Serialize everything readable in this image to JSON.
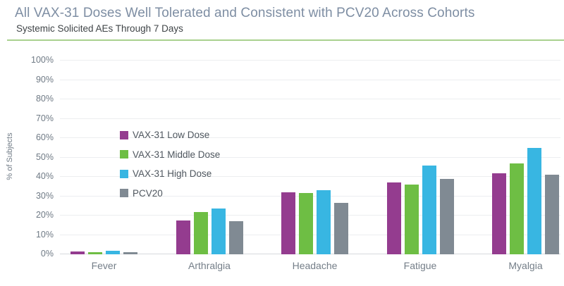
{
  "header": {
    "title": "All VAX-31 Doses Well Tolerated and Consistent with PCV20 Across Cohorts",
    "subtitle": "Systemic Solicited AEs Through 7 Days",
    "divider_color": "#A9D18E",
    "title_color": "#7E8EA3"
  },
  "chart_data": {
    "type": "bar",
    "title": "Systemic Solicited AEs Through 7 Days",
    "xlabel": "",
    "ylabel": "% of Subjects",
    "ylim": [
      0,
      100
    ],
    "ytick_step": 10,
    "ytick_suffix": "%",
    "grid": true,
    "legend_position": "top-left-inside",
    "categories": [
      "Fever",
      "Arthralgia",
      "Headache",
      "Fatigue",
      "Myalgia"
    ],
    "series": [
      {
        "name": "VAX-31 Low Dose",
        "color": "#943C8F",
        "values": [
          1.5,
          17.5,
          32,
          37,
          42
        ]
      },
      {
        "name": "VAX-31 Middle Dose",
        "color": "#6EBE44",
        "values": [
          1.2,
          22,
          31.5,
          36,
          47
        ]
      },
      {
        "name": "VAX-31 High Dose",
        "color": "#38B6E2",
        "values": [
          1.8,
          23.5,
          33,
          46,
          55
        ]
      },
      {
        "name": "PCV20",
        "color": "#808A93",
        "values": [
          1.0,
          17,
          26.5,
          39,
          41
        ]
      }
    ]
  }
}
